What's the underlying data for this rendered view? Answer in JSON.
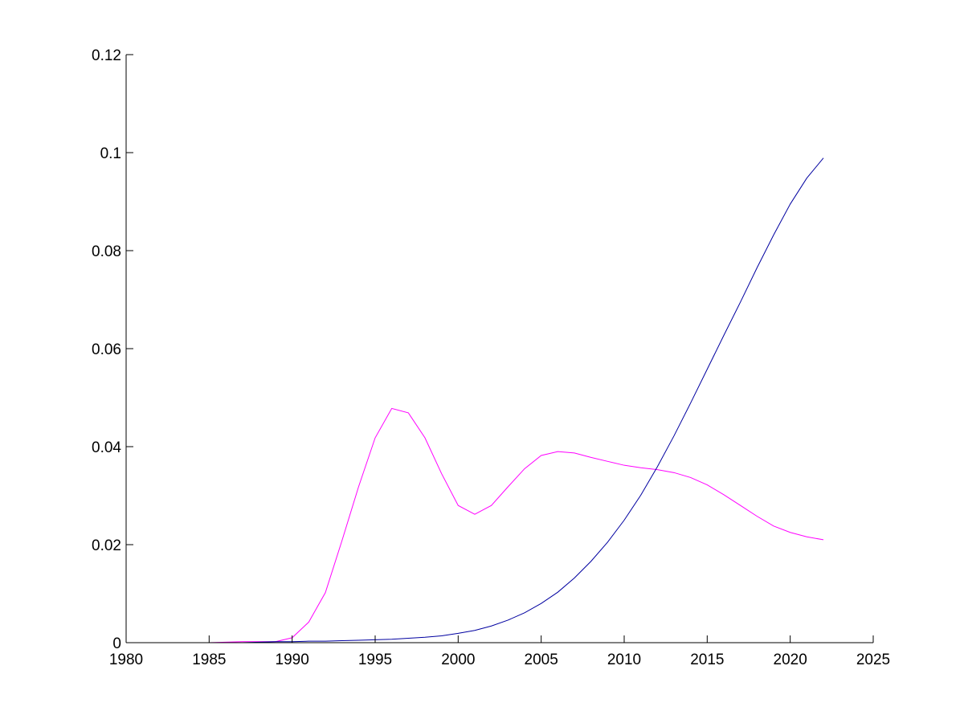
{
  "chart_data": {
    "type": "line",
    "title": "",
    "xlabel": "",
    "ylabel": "",
    "xlim": [
      1980,
      2025
    ],
    "ylim": [
      0,
      0.12
    ],
    "grid": false,
    "x_ticks": [
      1980,
      1985,
      1990,
      1995,
      2000,
      2005,
      2010,
      2015,
      2020,
      2025
    ],
    "x_tick_labels": [
      "1980",
      "1985",
      "1990",
      "1995",
      "2000",
      "2005",
      "2010",
      "2015",
      "2020",
      "2025"
    ],
    "y_ticks": [
      0,
      0.02,
      0.04,
      0.06,
      0.08,
      0.1,
      0.12
    ],
    "y_tick_labels": [
      "0",
      "0.02",
      "0.04",
      "0.06",
      "0.08",
      "0.1",
      "0.12"
    ],
    "series": [
      {
        "color": "#ff00ff",
        "x": [
          1980,
          1981,
          1982,
          1983,
          1984,
          1985,
          1986,
          1987,
          1988,
          1989,
          1990,
          1991,
          1992,
          1993,
          1994,
          1995,
          1996,
          1997,
          1998,
          1999,
          2000,
          2001,
          2002,
          2003,
          2004,
          2005,
          2006,
          2007,
          2008,
          2009,
          2010,
          2011,
          2012,
          2013,
          2014,
          2015,
          2016,
          2017,
          2018,
          2019,
          2020,
          2021,
          2022
        ],
        "values": [
          0,
          0,
          0,
          0,
          0,
          0,
          0.0001,
          0.0002,
          0.0002,
          0.0002,
          0.001,
          0.0042,
          0.0102,
          0.0208,
          0.0318,
          0.0418,
          0.0478,
          0.0469,
          0.0418,
          0.0345,
          0.028,
          0.0262,
          0.028,
          0.0318,
          0.0355,
          0.0382,
          0.039,
          0.0387,
          0.0378,
          0.037,
          0.0362,
          0.0357,
          0.0353,
          0.0347,
          0.0337,
          0.0322,
          0.0302,
          0.028,
          0.0258,
          0.0238,
          0.0225,
          0.0216,
          0.021
        ]
      },
      {
        "color": "#0000a0",
        "x": [
          1980,
          1981,
          1982,
          1983,
          1984,
          1985,
          1986,
          1987,
          1988,
          1989,
          1990,
          1991,
          1992,
          1993,
          1994,
          1995,
          1996,
          1997,
          1998,
          1999,
          2000,
          2001,
          2002,
          2003,
          2004,
          2005,
          2006,
          2007,
          2008,
          2009,
          2010,
          2011,
          2012,
          2013,
          2014,
          2015,
          2016,
          2017,
          2018,
          2019,
          2020,
          2021,
          2022
        ],
        "values": [
          0,
          0,
          0,
          0,
          0,
          0,
          0,
          0,
          0.0001,
          0.0002,
          0.0002,
          0.0003,
          0.0003,
          0.0004,
          0.0005,
          0.0006,
          0.0007,
          0.0009,
          0.0011,
          0.0014,
          0.0019,
          0.0025,
          0.0034,
          0.0046,
          0.0061,
          0.008,
          0.0103,
          0.0132,
          0.0166,
          0.0205,
          0.025,
          0.0301,
          0.0359,
          0.0422,
          0.0489,
          0.0558,
          0.0627,
          0.0695,
          0.0765,
          0.0832,
          0.0895,
          0.0948,
          0.0989
        ]
      }
    ]
  }
}
